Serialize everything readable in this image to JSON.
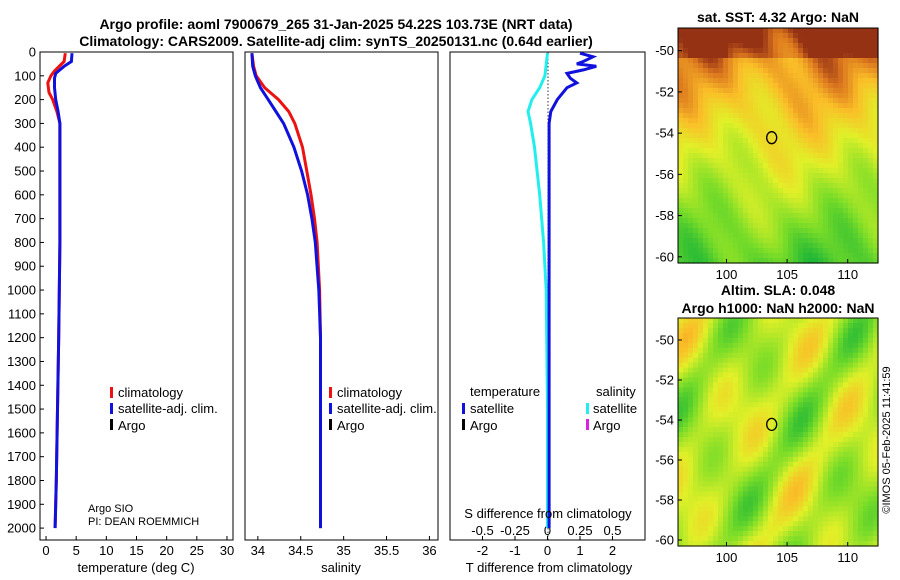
{
  "header": {
    "line1": "Argo profile: aoml 7900679_265 31-Jan-2025 54.22S 103.73E (NRT data)",
    "line2": "Climatology: CARS2009. Satellite-adj clim: synTS_20250131.nc (0.64d earlier)"
  },
  "colors": {
    "climatology": "#ee1111",
    "satellite_adj": "#1111dd",
    "argo": "#000000",
    "satellite_salinity": "#22eeee",
    "argo_salinity": "#dd22dd"
  },
  "chart_data": [
    {
      "type": "line",
      "name": "temperature-profile",
      "xlabel": "temperature (deg C)",
      "xlim": [
        -1,
        31
      ],
      "xticks": [
        0,
        5,
        10,
        15,
        20,
        25,
        30
      ],
      "ylim": [
        2050,
        0
      ],
      "yticks": [
        0,
        100,
        200,
        300,
        400,
        500,
        600,
        700,
        800,
        900,
        1000,
        1100,
        1200,
        1300,
        1400,
        1500,
        1600,
        1700,
        1800,
        1900,
        2000
      ],
      "legend": [
        "climatology",
        "satellite-adj. clim.",
        "Argo"
      ],
      "legend_position": "lower-right",
      "series": [
        {
          "name": "climatology",
          "depth": [
            5,
            40,
            80,
            100,
            130,
            170,
            200,
            250,
            300,
            400,
            600,
            800,
            1000,
            1200,
            1500,
            1800,
            2000
          ],
          "values": [
            3.2,
            3.0,
            1.4,
            0.8,
            0.3,
            0.5,
            1.1,
            1.8,
            2.3,
            2.3,
            2.3,
            2.3,
            2.2,
            2.1,
            1.9,
            1.7,
            1.5
          ]
        },
        {
          "name": "satellite-adj. clim.",
          "depth": [
            5,
            40,
            60,
            90,
            110,
            150,
            200,
            250,
            300,
            400,
            600,
            800,
            1000,
            1200,
            1500,
            1800,
            2000
          ],
          "values": [
            4.3,
            4.2,
            3.0,
            1.6,
            1.4,
            1.4,
            1.6,
            2.0,
            2.3,
            2.3,
            2.3,
            2.3,
            2.2,
            2.1,
            1.9,
            1.7,
            1.5
          ]
        }
      ],
      "annotation_lines": [
        "Argo SIO",
        "PI: DEAN ROEMMICH"
      ]
    },
    {
      "type": "line",
      "name": "salinity-profile",
      "xlabel": "salinity",
      "xlim": [
        33.85,
        36.1
      ],
      "xticks": [
        34,
        34.5,
        35,
        35.5,
        36
      ],
      "xticklabels": [
        "34",
        "34.5",
        "35",
        "35.5",
        "36"
      ],
      "ylim": [
        2050,
        0
      ],
      "legend": [
        "climatology",
        "satellite-adj. clim.",
        "Argo"
      ],
      "legend_position": "lower-right",
      "series": [
        {
          "name": "climatology",
          "depth": [
            5,
            60,
            100,
            150,
            200,
            250,
            300,
            400,
            500,
            600,
            700,
            800,
            1000,
            1200,
            1500,
            1800,
            2000
          ],
          "values": [
            33.93,
            33.95,
            33.98,
            34.08,
            34.24,
            34.36,
            34.43,
            34.52,
            34.57,
            34.62,
            34.66,
            34.69,
            34.72,
            34.73,
            34.73,
            34.73,
            34.73
          ]
        },
        {
          "name": "satellite-adj. clim.",
          "depth": [
            5,
            60,
            100,
            150,
            200,
            250,
            300,
            400,
            500,
            600,
            700,
            800,
            1000,
            1200,
            1500,
            1800,
            2000
          ],
          "values": [
            33.93,
            33.94,
            33.97,
            34.03,
            34.12,
            34.21,
            34.3,
            34.42,
            34.51,
            34.58,
            34.63,
            34.67,
            34.71,
            34.73,
            34.73,
            34.73,
            34.73
          ]
        }
      ]
    },
    {
      "type": "line",
      "name": "difference-profile",
      "xlabel": "T difference from climatology",
      "xlim": [
        -3,
        3
      ],
      "xticks": [
        -2,
        -1,
        0,
        1,
        2
      ],
      "xticklabels": [
        "-2",
        "-1",
        "0",
        "1",
        "2"
      ],
      "top_label": "S difference from climatology",
      "s_xticks": [
        -0.5,
        -0.25,
        0,
        0.25,
        0.5
      ],
      "s_xticklabels": [
        "-0.5",
        "-0.25",
        "0",
        "0.25",
        "0.5"
      ],
      "s_scale_per_t": 0.25,
      "ylim": [
        2050,
        0
      ],
      "legend_temperature": {
        "title": "temperature",
        "items": [
          "satellite",
          "Argo"
        ]
      },
      "legend_salinity": {
        "title": "salinity",
        "items": [
          "satellite",
          "Argo"
        ]
      },
      "series": [
        {
          "name": "temperature satellite",
          "depth": [
            5,
            20,
            40,
            50,
            60,
            75,
            90,
            110,
            130,
            150,
            200,
            250,
            300,
            500,
            1000,
            1500,
            2000
          ],
          "values": [
            1.0,
            1.4,
            1.1,
            0.9,
            1.5,
            1.1,
            0.6,
            0.7,
            0.9,
            0.6,
            0.3,
            0.1,
            0.05,
            0.05,
            0.05,
            0.05,
            0.05
          ]
        },
        {
          "name": "salinity satellite",
          "depth": [
            5,
            100,
            150,
            200,
            250,
            300,
            400,
            600,
            800,
            1000,
            1500,
            2000
          ],
          "values": [
            0.0,
            -0.02,
            -0.06,
            -0.12,
            -0.15,
            -0.13,
            -0.1,
            -0.06,
            -0.03,
            -0.01,
            0.0,
            0.0
          ]
        }
      ]
    },
    {
      "type": "heatmap",
      "name": "sst-map",
      "title": "sat. SST: 4.32 Argo: NaN",
      "xlim": [
        96,
        112.5
      ],
      "ylim": [
        -60.3,
        -48.9
      ],
      "xticks": [
        100,
        105,
        110
      ],
      "yticks": [
        -50,
        -52,
        -54,
        -56,
        -58,
        -60
      ],
      "yticklabels": [
        "-50",
        "-52",
        "-54",
        "-56",
        "-58",
        "-60"
      ],
      "marker": {
        "lon": 103.73,
        "lat": -54.22
      }
    },
    {
      "type": "heatmap",
      "name": "sla-map",
      "title_line1": "Altim. SLA: 0.048",
      "title_line2": "Argo h1000: NaN h2000: NaN",
      "xlim": [
        96,
        112.5
      ],
      "ylim": [
        -60.3,
        -48.9
      ],
      "xticks": [
        100,
        105,
        110
      ],
      "yticks": [
        -50,
        -52,
        -54,
        -56,
        -58,
        -60
      ],
      "yticklabels": [
        "-50",
        "-52",
        "-54",
        "-56",
        "-58",
        "-60"
      ],
      "marker": {
        "lon": 103.73,
        "lat": -54.22
      }
    }
  ],
  "watermark": "©IMOS 05-Feb-2025 11:41:59"
}
